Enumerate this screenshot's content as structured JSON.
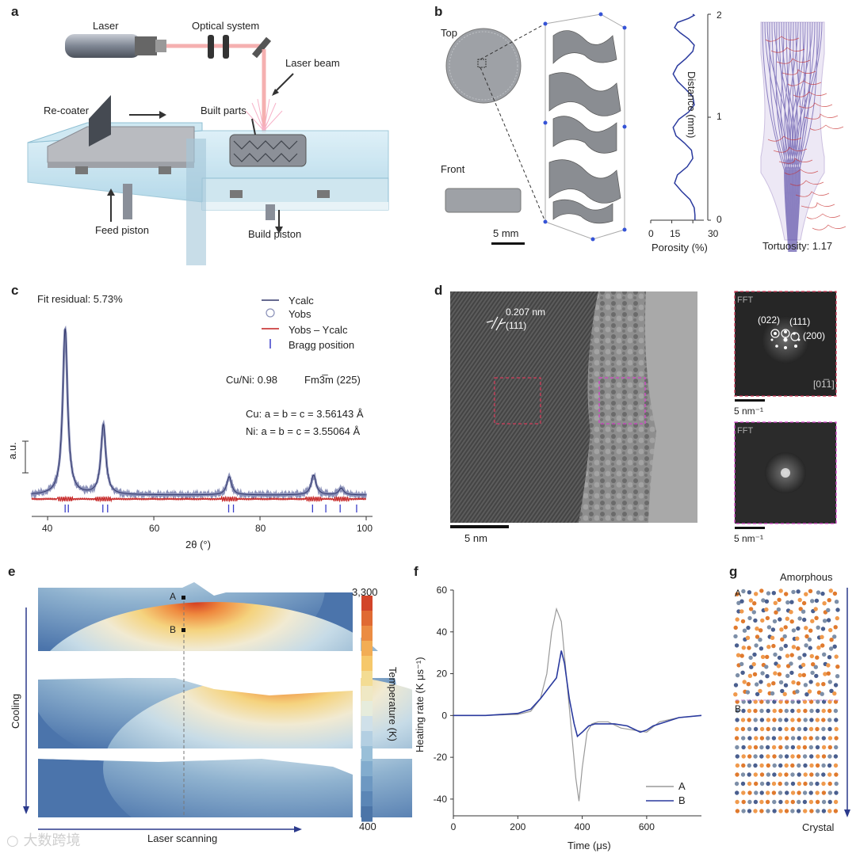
{
  "panels": {
    "a": {
      "letter": "a",
      "labels": {
        "laser": "Laser",
        "optical": "Optical system",
        "beam": "Laser beam",
        "recoater": "Re-coater",
        "built": "Built parts",
        "feed": "Feed piston",
        "build": "Build piston"
      }
    },
    "b": {
      "letter": "b",
      "top": "Top",
      "front": "Front",
      "scale": "5 mm",
      "porosity_xlabel": "Porosity (%)",
      "distance_ylabel": "Distance (mm)",
      "xticks": [
        "0",
        "15",
        "30"
      ],
      "yticks": [
        "0",
        "1",
        "2"
      ],
      "tortuosity": "Tortuosity: 1.17"
    },
    "c": {
      "letter": "c",
      "fit": "Fit residual: 5.73%",
      "legend": [
        "Ycalc",
        "Yobs",
        "Yobs – Ycalc",
        "Bragg position"
      ],
      "cuni": "Cu/Ni: 0.98",
      "space": "Fm3̅m (225)",
      "cu": "Cu: a = b = c = 3.56143 Å",
      "ni": "Ni: a = b = c = 3.55064 Å",
      "ylabel": "a.u.",
      "xlabel": "2θ  (°)",
      "xticks": [
        "40",
        "60",
        "80",
        "100"
      ]
    },
    "d": {
      "letter": "d",
      "spacing": "0.207 nm",
      "plane": "(111)",
      "scale": "5 nm",
      "fft": "FFT",
      "fft2": "FFT",
      "spots": [
        "(022)",
        "(111)",
        "(200)"
      ],
      "zone": "[01̅1]",
      "fftscale1": "5 nm⁻¹",
      "fftscale2": "5 nm⁻¹"
    },
    "e": {
      "letter": "e",
      "pointA": "A",
      "pointB": "B",
      "cbar_max": "3,300",
      "cbar_min": "400",
      "cbar_label": "Temperature (K)",
      "cooling": "Cooling",
      "scanning": "Laser scanning"
    },
    "f": {
      "letter": "f",
      "ylabel": "Heating rate (K μs⁻¹)",
      "xlabel": "Time (μs)",
      "legend": [
        "A",
        "B"
      ]
    },
    "g": {
      "letter": "g",
      "amorphous": "Amorphous",
      "crystal": "Crystal",
      "pointA": "A",
      "pointB": "B"
    }
  },
  "watermark": "大数跨境",
  "chart_data": [
    {
      "type": "line",
      "panel": "b",
      "xlabel": "Porosity (%)",
      "ylabel": "Distance (mm)",
      "xlim": [
        0,
        35
      ],
      "ylim": [
        0,
        2
      ],
      "x": [
        31.5,
        31.5,
        31,
        28,
        22,
        17,
        19,
        26,
        30,
        29,
        24,
        18,
        16,
        20,
        27,
        31,
        30,
        25,
        19,
        16,
        19,
        25,
        30,
        31,
        27,
        21,
        17,
        19,
        27,
        31,
        30
      ],
      "y": [
        0,
        0.05,
        0.12,
        0.2,
        0.28,
        0.36,
        0.44,
        0.52,
        0.6,
        0.68,
        0.75,
        0.82,
        0.9,
        0.98,
        1.05,
        1.12,
        1.2,
        1.27,
        1.35,
        1.42,
        1.5,
        1.57,
        1.64,
        1.7,
        1.76,
        1.82,
        1.87,
        1.92,
        1.96,
        1.99,
        2.0
      ]
    },
    {
      "type": "line",
      "panel": "c",
      "xlabel": "2θ (°)",
      "ylabel": "a.u.",
      "xlim": [
        37,
        100
      ],
      "peaks": [
        {
          "x": 43.3,
          "height": 1.0
        },
        {
          "x": 50.5,
          "height": 0.42
        },
        {
          "x": 74.2,
          "height": 0.11
        },
        {
          "x": 90.1,
          "height": 0.12
        },
        {
          "x": 95.3,
          "height": 0.04
        }
      ],
      "bragg_cu": [
        43.3,
        50.4,
        74.1,
        89.9,
        95.1
      ],
      "bragg_ni": [
        43.9,
        51.3,
        75.0,
        92.4,
        98.2
      ],
      "series": [
        {
          "name": "Ycalc"
        },
        {
          "name": "Yobs"
        },
        {
          "name": "Yobs – Ycalc"
        },
        {
          "name": "Bragg position"
        }
      ]
    },
    {
      "type": "line",
      "panel": "f",
      "xlabel": "Time (μs)",
      "ylabel": "Heating rate (K μs⁻¹)",
      "xlim": [
        0,
        770
      ],
      "ylim": [
        -48,
        60
      ],
      "xticks": [
        0,
        200,
        400,
        600
      ],
      "yticks": [
        -40,
        -20,
        0,
        20,
        40,
        60
      ],
      "series": [
        {
          "name": "A",
          "color": "#999999",
          "x": [
            0,
            100,
            200,
            240,
            270,
            290,
            305,
            320,
            335,
            350,
            365,
            380,
            390,
            400,
            415,
            430,
            450,
            480,
            520,
            560,
            600,
            640,
            700,
            770
          ],
          "y": [
            0,
            0,
            0.5,
            2,
            8,
            20,
            40,
            51,
            45,
            20,
            -5,
            -30,
            -41,
            -25,
            -8,
            -4,
            -3,
            -3,
            -6,
            -7,
            -8,
            -3,
            -1,
            0
          ]
        },
        {
          "name": "B",
          "color": "#2a3a9e",
          "x": [
            0,
            100,
            200,
            240,
            270,
            300,
            320,
            335,
            345,
            360,
            375,
            385,
            400,
            420,
            440,
            460,
            500,
            540,
            580,
            600,
            620,
            660,
            700,
            770
          ],
          "y": [
            0,
            0,
            1,
            3,
            8,
            14,
            18,
            31,
            25,
            8,
            -4,
            -10,
            -8,
            -5,
            -4,
            -4,
            -4,
            -5,
            -8,
            -7,
            -5,
            -3,
            -1,
            0
          ]
        }
      ]
    }
  ]
}
